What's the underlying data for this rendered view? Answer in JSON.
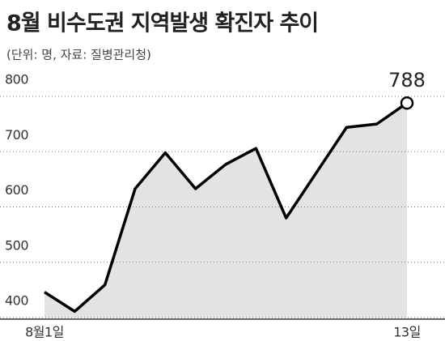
{
  "chart_data": {
    "type": "area",
    "title": "8월 비수도권 지역발생 확진자 추이",
    "subtitle": "(단위: 명, 자료: 질병관리청)",
    "categories": [
      "8월1일",
      null,
      null,
      null,
      null,
      null,
      null,
      null,
      null,
      null,
      null,
      null,
      "13일"
    ],
    "values": [
      446,
      411,
      459,
      633,
      698,
      633,
      677,
      706,
      580,
      662,
      744,
      750,
      788
    ],
    "color": "#000000",
    "fill": "#e3e3e3",
    "ylim": [
      400,
      800
    ],
    "yticks": [
      400,
      500,
      600,
      700,
      800
    ],
    "grid": true
  }
}
